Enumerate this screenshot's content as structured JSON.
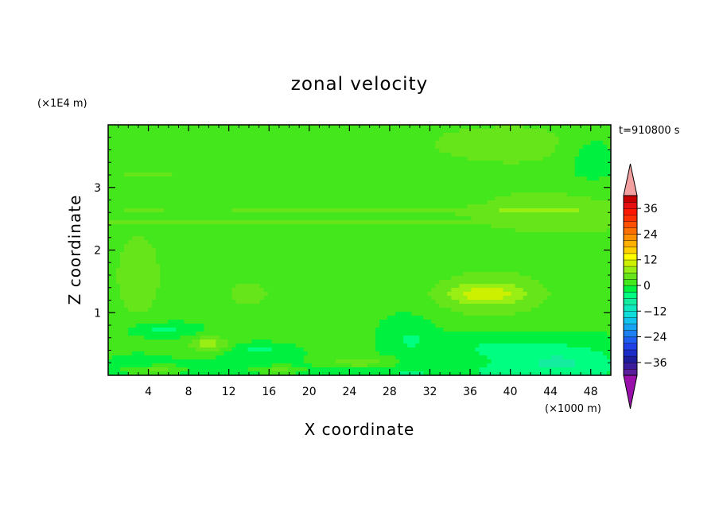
{
  "chart_data": {
    "type": "heatmap",
    "title": "zonal velocity",
    "xlabel": "X coordinate",
    "ylabel": "Z coordinate",
    "x_unit_label": "(×1000 m)",
    "y_unit_label": "(×1E4 m)",
    "time_label": "t=910800 s",
    "xlim": [
      0,
      50
    ],
    "ylim": [
      0,
      4
    ],
    "x_ticks": [
      4,
      8,
      12,
      16,
      20,
      24,
      28,
      32,
      36,
      40,
      44,
      48
    ],
    "y_ticks": [
      1,
      2,
      3
    ],
    "colorbar": {
      "levels": [
        -42,
        -39,
        -36,
        -33,
        -30,
        -27,
        -24,
        -21,
        -18,
        -15,
        -12,
        -9,
        -6,
        -3,
        0,
        3,
        6,
        9,
        12,
        15,
        18,
        21,
        24,
        27,
        30,
        33,
        36,
        39,
        42
      ],
      "colors": [
        "#5a1e9c",
        "#3a1c9c",
        "#1c1c9c",
        "#1c2cc8",
        "#2040e8",
        "#1e5ef0",
        "#1c80f2",
        "#18a2f2",
        "#14c2f0",
        "#10dcdc",
        "#10e8c0",
        "#14eca0",
        "#00ff80",
        "#00f040",
        "#44e61c",
        "#66e61a",
        "#99ee14",
        "#ccf000",
        "#ffff00",
        "#ffd000",
        "#ffb000",
        "#ff9000",
        "#ff7000",
        "#ff5000",
        "#ff3000",
        "#ff1800",
        "#e61010",
        "#c80000"
      ],
      "under_color": "#9910aa",
      "over_color": "#f2a0a0",
      "tick_labels": [
        "36",
        "24",
        "12",
        "0",
        "−12",
        "−24",
        "−36"
      ],
      "tick_values": [
        36,
        24,
        12,
        0,
        -12,
        -24,
        -36
      ]
    },
    "background_value": 0.5,
    "features": [
      {
        "cx": 25,
        "cy": 0.02,
        "sx": 28,
        "sy": 0.22,
        "v": -3.5
      },
      {
        "cx": 37,
        "cy": 0.45,
        "sx": 5,
        "sy": 0.2,
        "v": -3
      },
      {
        "cx": 45,
        "cy": 0.25,
        "sx": 6,
        "sy": 0.3,
        "v": -6
      },
      {
        "cx": 30,
        "cy": 0.6,
        "sx": 2.5,
        "sy": 0.35,
        "v": -3.5
      },
      {
        "cx": 5,
        "cy": 0.72,
        "sx": 3.2,
        "sy": 0.12,
        "v": -5
      },
      {
        "cx": 15,
        "cy": 0.4,
        "sx": 3,
        "sy": 0.1,
        "v": -4
      },
      {
        "cx": 3,
        "cy": 0.25,
        "sx": 2,
        "sy": 0.1,
        "v": -2.5
      },
      {
        "cx": 38,
        "cy": 1.3,
        "sx": 6,
        "sy": 0.38,
        "v": 6
      },
      {
        "cx": 37.5,
        "cy": 1.3,
        "sx": 3.5,
        "sy": 0.14,
        "v": 5
      },
      {
        "cx": 45,
        "cy": 2.6,
        "sx": 12,
        "sy": 0.5,
        "v": 4
      },
      {
        "cx": 40,
        "cy": 3.7,
        "sx": 11,
        "sy": 0.4,
        "v": 4
      },
      {
        "cx": 48,
        "cy": 3.5,
        "sx": 3,
        "sy": 0.5,
        "v": -3.5
      },
      {
        "cx": 3,
        "cy": 1.6,
        "sx": 3,
        "sy": 0.9,
        "v": 4
      },
      {
        "cx": 14,
        "cy": 1.3,
        "sx": 2.5,
        "sy": 0.25,
        "v": 4
      },
      {
        "cx": 10,
        "cy": 0.5,
        "sx": 2,
        "sy": 0.12,
        "v": 7
      },
      {
        "cx": 25,
        "cy": 0.2,
        "sx": 4,
        "sy": 0.1,
        "v": 6
      },
      {
        "cx": 17,
        "cy": 0.08,
        "sx": 3,
        "sy": 0.07,
        "v": 6
      },
      {
        "cx": 5,
        "cy": 0.08,
        "sx": 3,
        "sy": 0.07,
        "v": 5
      },
      {
        "cx": 25,
        "cy": 2.63,
        "sx": 30,
        "sy": 0.05,
        "v": 3
      },
      {
        "cx": 20,
        "cy": 2.45,
        "sx": 30,
        "sy": 0.04,
        "v": 3
      },
      {
        "cx": 4,
        "cy": 3.2,
        "sx": 5,
        "sy": 0.1,
        "v": 3
      }
    ]
  }
}
